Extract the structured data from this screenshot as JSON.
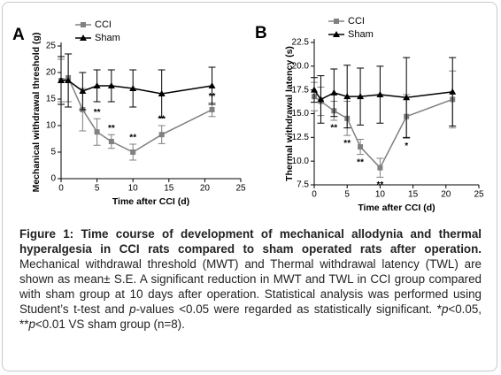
{
  "chart_data": [
    {
      "type": "line",
      "panel": "A",
      "ylabel": "Mechanical withdrawal threshold (g)",
      "xlabel": "Time after CCI (d)",
      "xlim": [
        0,
        25
      ],
      "ylim": [
        0,
        25
      ],
      "xticks": [
        0,
        5,
        10,
        15,
        20,
        25
      ],
      "yticks": [
        0,
        5,
        10,
        15,
        20,
        25
      ],
      "x": [
        0,
        1,
        3,
        5,
        7,
        10,
        14,
        21
      ],
      "legend": "upper left",
      "series": [
        {
          "name": "CCI",
          "color": "#808080",
          "marker": "square",
          "values": [
            18.5,
            19,
            13,
            8.8,
            7,
            5,
            8.3,
            13
          ],
          "errors": [
            4,
            4.5,
            4,
            2.5,
            1.3,
            1.5,
            1.7,
            1.3
          ],
          "significance": [
            null,
            null,
            null,
            "**",
            "**",
            "**",
            "**",
            "**"
          ]
        },
        {
          "name": "Sham",
          "color": "#000000",
          "marker": "triangle",
          "values": [
            18.5,
            18.5,
            16.5,
            17.5,
            17.5,
            17,
            16,
            17.5
          ],
          "errors": [
            4.5,
            5,
            3.5,
            3,
            3,
            3.5,
            4.5,
            3.5
          ]
        }
      ]
    },
    {
      "type": "line",
      "panel": "B",
      "ylabel": "Thermal withdrawal latency (s)",
      "xlabel": "Time after CCI (d)",
      "xlim": [
        0,
        25
      ],
      "ylim": [
        7.5,
        22.5
      ],
      "xticks": [
        0,
        5,
        10,
        15,
        20,
        25
      ],
      "yticks": [
        7.5,
        {
          "value": 10,
          "label": "10.0"
        },
        12.5,
        {
          "value": 15,
          "label": "15.0"
        },
        17.5,
        {
          "value": 20,
          "label": "20.0"
        },
        22.5
      ],
      "x": [
        0,
        1,
        3,
        5,
        7,
        10,
        14,
        21
      ],
      "legend": "upper left",
      "series": [
        {
          "name": "CCI",
          "color": "#808080",
          "marker": "square",
          "values": [
            16.8,
            16.3,
            15.3,
            14.5,
            11.5,
            9.3,
            14.7,
            16.5
          ],
          "errors": [
            1.5,
            1.5,
            1,
            1.8,
            0.8,
            1,
            2.3,
            3
          ],
          "significance": [
            null,
            null,
            "**",
            "**",
            "**",
            "**",
            "*",
            null
          ]
        },
        {
          "name": "Sham",
          "color": "#000000",
          "marker": "triangle",
          "values": [
            17.5,
            16.5,
            17.2,
            16.8,
            16.8,
            17,
            16.7,
            17.3
          ],
          "errors": [
            1.3,
            2.5,
            2.5,
            3.3,
            3,
            3,
            4.2,
            3.6
          ]
        }
      ]
    }
  ],
  "caption": {
    "title": "Figure 1: Time course of development of mechanical allodynia and thermal hyperalgesia in CCI rats compared to sham operated rats after operation.",
    "body": [
      "Mechanical withdrawal threshold (MWT) and Thermal withdrawal latency (TWL) are shown as mean± S.E. A significant reduction in MWT and TWL in CCI group compared with sham group at 10 days after operation. Statistical analysis was performed using Student’s t-test and ",
      "p",
      "-values <0.05 were regarded as statistically significant. *",
      "p",
      "<0.05, **",
      "p",
      "<0.01 VS sham group (n=8)."
    ]
  }
}
